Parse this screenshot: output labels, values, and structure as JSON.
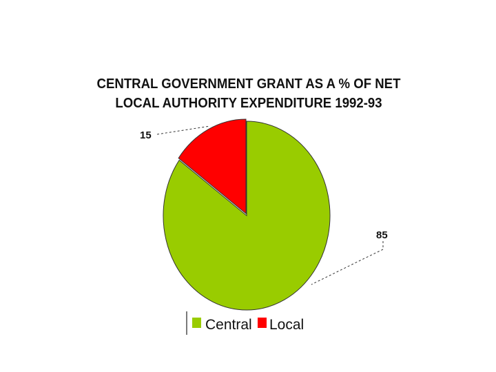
{
  "chart_data": {
    "type": "pie",
    "title_lines": [
      "CENTRAL GOVERNMENT GRANT AS A % OF NET",
      "LOCAL AUTHORITY EXPENDITURE 1992-93"
    ],
    "categories": [
      "Central",
      "Local"
    ],
    "values": [
      85,
      15
    ],
    "data_labels": [
      "85",
      "15"
    ],
    "colors": [
      "#99cc00",
      "#ff0000"
    ],
    "exploded": "Local",
    "legend": {
      "position": "bottom"
    }
  }
}
